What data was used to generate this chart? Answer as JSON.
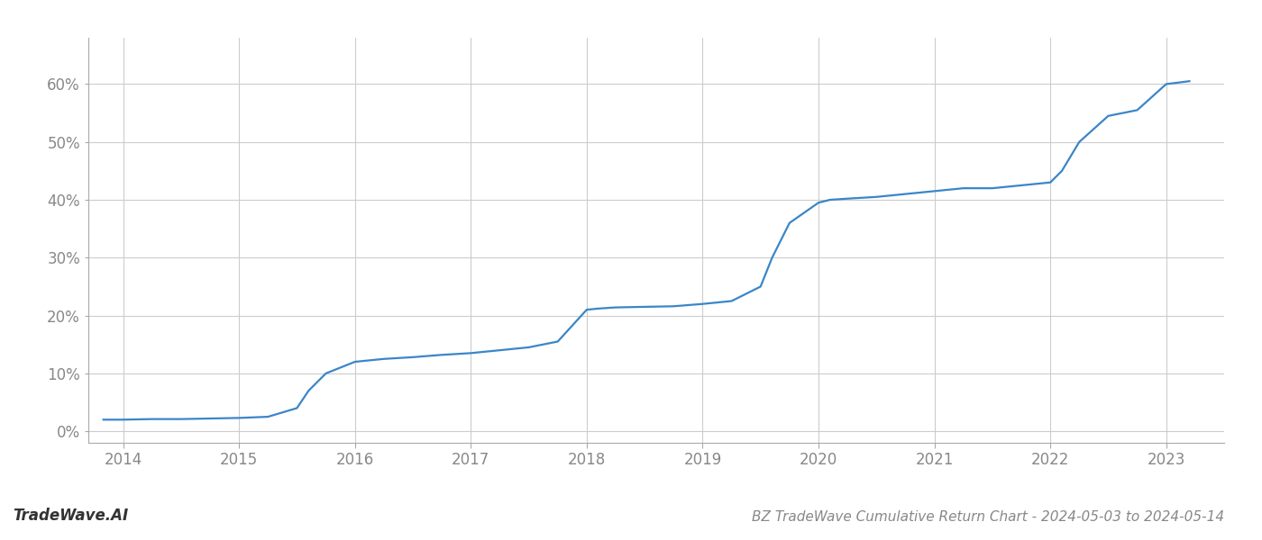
{
  "title": "BZ TradeWave Cumulative Return Chart - 2024-05-03 to 2024-05-14",
  "watermark": "TradeWave.AI",
  "line_color": "#3a86c8",
  "background_color": "#ffffff",
  "grid_color": "#cccccc",
  "x_values": [
    2013.83,
    2014.0,
    2014.25,
    2014.5,
    2014.75,
    2015.0,
    2015.25,
    2015.5,
    2015.6,
    2015.75,
    2016.0,
    2016.1,
    2016.25,
    2016.5,
    2016.75,
    2017.0,
    2017.25,
    2017.5,
    2017.75,
    2018.0,
    2018.1,
    2018.25,
    2018.5,
    2018.75,
    2019.0,
    2019.1,
    2019.25,
    2019.5,
    2019.6,
    2019.75,
    2020.0,
    2020.1,
    2020.25,
    2020.5,
    2020.75,
    2021.0,
    2021.25,
    2021.5,
    2021.75,
    2022.0,
    2022.1,
    2022.25,
    2022.5,
    2022.75,
    2023.0,
    2023.2
  ],
  "y_values": [
    2.0,
    2.0,
    2.1,
    2.1,
    2.2,
    2.3,
    2.5,
    4.0,
    7.0,
    10.0,
    12.0,
    12.2,
    12.5,
    12.8,
    13.2,
    13.5,
    14.0,
    14.5,
    15.5,
    21.0,
    21.2,
    21.4,
    21.5,
    21.6,
    22.0,
    22.2,
    22.5,
    25.0,
    30.0,
    36.0,
    39.5,
    40.0,
    40.2,
    40.5,
    41.0,
    41.5,
    42.0,
    42.0,
    42.5,
    43.0,
    45.0,
    50.0,
    54.5,
    55.5,
    60.0,
    60.5
  ],
  "xticks": [
    2014,
    2015,
    2016,
    2017,
    2018,
    2019,
    2020,
    2021,
    2022,
    2023
  ],
  "yticks": [
    0,
    10,
    20,
    30,
    40,
    50,
    60
  ],
  "xlim": [
    2013.7,
    2023.5
  ],
  "ylim": [
    -2,
    68
  ],
  "line_width": 1.6,
  "title_fontsize": 11,
  "tick_fontsize": 12,
  "watermark_fontsize": 12
}
